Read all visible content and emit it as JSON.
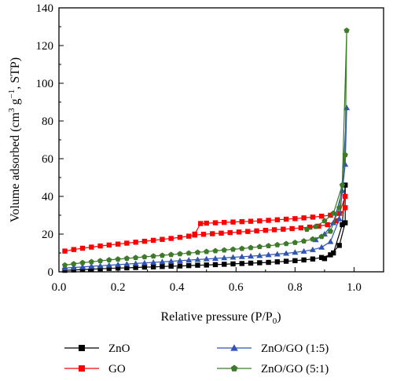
{
  "chart_data": {
    "type": "line",
    "xlabel": "Relative pressure (P/P",
    "xlabel_sub": "0",
    "xlabel_end": ")",
    "ylabel": "Volume adsorbed (cm",
    "ylabel_sup1": "3",
    "ylabel_mid": " g",
    "ylabel_sup2": "−1",
    "ylabel_end": ", STP)",
    "xlim": [
      0.0,
      1.1
    ],
    "ylim": [
      0,
      140
    ],
    "xticks": [
      "0.0",
      "0.2",
      "0.4",
      "0.6",
      "0.8",
      "1.0"
    ],
    "yticks": [
      "0",
      "20",
      "40",
      "60",
      "80",
      "100",
      "120",
      "140"
    ],
    "grid": false,
    "legend_position": "bottom",
    "series": [
      {
        "name": "ZnO",
        "color": "#000000",
        "marker": "square",
        "adsorption": [
          [
            0.02,
            0.8
          ],
          [
            0.05,
            1.0
          ],
          [
            0.08,
            1.2
          ],
          [
            0.11,
            1.4
          ],
          [
            0.14,
            1.6
          ],
          [
            0.17,
            1.8
          ],
          [
            0.2,
            2.0
          ],
          [
            0.23,
            2.1
          ],
          [
            0.26,
            2.3
          ],
          [
            0.29,
            2.5
          ],
          [
            0.32,
            2.6
          ],
          [
            0.35,
            2.8
          ],
          [
            0.38,
            3.0
          ],
          [
            0.41,
            3.1
          ],
          [
            0.44,
            3.3
          ],
          [
            0.47,
            3.5
          ],
          [
            0.5,
            3.6
          ],
          [
            0.53,
            3.8
          ],
          [
            0.56,
            4.0
          ],
          [
            0.59,
            4.2
          ],
          [
            0.62,
            4.4
          ],
          [
            0.65,
            4.6
          ],
          [
            0.68,
            4.8
          ],
          [
            0.71,
            5.0
          ],
          [
            0.74,
            5.3
          ],
          [
            0.77,
            5.6
          ],
          [
            0.8,
            5.9
          ],
          [
            0.83,
            6.3
          ],
          [
            0.86,
            6.8
          ],
          [
            0.89,
            7.6
          ],
          [
            0.92,
            9.0
          ],
          [
            0.95,
            14
          ],
          [
            0.97,
            26
          ]
        ],
        "desorption": [
          [
            0.97,
            46
          ],
          [
            0.96,
            25
          ],
          [
            0.93,
            10
          ],
          [
            0.9,
            7
          ]
        ]
      },
      {
        "name": "GO",
        "color": "#ff0000",
        "marker": "square",
        "adsorption": [
          [
            0.02,
            11
          ],
          [
            0.05,
            11.8
          ],
          [
            0.08,
            12.5
          ],
          [
            0.11,
            13.1
          ],
          [
            0.14,
            13.7
          ],
          [
            0.17,
            14.2
          ],
          [
            0.2,
            14.7
          ],
          [
            0.23,
            15.2
          ],
          [
            0.26,
            15.7
          ],
          [
            0.29,
            16.2
          ],
          [
            0.32,
            16.7
          ],
          [
            0.35,
            17.2
          ],
          [
            0.38,
            17.7
          ],
          [
            0.41,
            18.3
          ],
          [
            0.44,
            18.9
          ],
          [
            0.46,
            19.5
          ],
          [
            0.49,
            19.9
          ],
          [
            0.52,
            20.2
          ],
          [
            0.55,
            20.5
          ],
          [
            0.58,
            20.8
          ],
          [
            0.61,
            21.1
          ],
          [
            0.64,
            21.4
          ],
          [
            0.67,
            21.7
          ],
          [
            0.7,
            22.0
          ],
          [
            0.73,
            22.3
          ],
          [
            0.76,
            22.6
          ],
          [
            0.79,
            22.9
          ],
          [
            0.82,
            23.3
          ],
          [
            0.85,
            23.7
          ],
          [
            0.88,
            24.2
          ],
          [
            0.91,
            25.0
          ],
          [
            0.94,
            27.0
          ],
          [
            0.97,
            34
          ]
        ],
        "desorption": [
          [
            0.97,
            40
          ],
          [
            0.95,
            31
          ],
          [
            0.92,
            30
          ],
          [
            0.89,
            29.5
          ],
          [
            0.86,
            29.0
          ],
          [
            0.83,
            28.6
          ],
          [
            0.8,
            28.2
          ],
          [
            0.77,
            27.9
          ],
          [
            0.74,
            27.6
          ],
          [
            0.71,
            27.3
          ],
          [
            0.68,
            27.0
          ],
          [
            0.65,
            26.8
          ],
          [
            0.62,
            26.6
          ],
          [
            0.59,
            26.4
          ],
          [
            0.56,
            26.2
          ],
          [
            0.53,
            26.0
          ],
          [
            0.5,
            25.8
          ],
          [
            0.48,
            25.6
          ],
          [
            0.46,
            20
          ]
        ]
      },
      {
        "name": "ZnO/GO (1:5)",
        "color": "#2f55b0",
        "marker": "triangle",
        "adsorption": [
          [
            0.02,
            2.0
          ],
          [
            0.05,
            2.3
          ],
          [
            0.08,
            2.6
          ],
          [
            0.11,
            2.9
          ],
          [
            0.14,
            3.2
          ],
          [
            0.17,
            3.5
          ],
          [
            0.2,
            3.8
          ],
          [
            0.23,
            4.1
          ],
          [
            0.26,
            4.4
          ],
          [
            0.29,
            4.7
          ],
          [
            0.32,
            5.0
          ],
          [
            0.35,
            5.3
          ],
          [
            0.38,
            5.6
          ],
          [
            0.41,
            5.9
          ],
          [
            0.44,
            6.2
          ],
          [
            0.47,
            6.5
          ],
          [
            0.5,
            6.8
          ],
          [
            0.53,
            7.1
          ],
          [
            0.56,
            7.4
          ],
          [
            0.59,
            7.7
          ],
          [
            0.62,
            8.0
          ],
          [
            0.65,
            8.3
          ],
          [
            0.68,
            8.6
          ],
          [
            0.71,
            9.0
          ],
          [
            0.74,
            9.4
          ],
          [
            0.77,
            9.8
          ],
          [
            0.8,
            10.3
          ],
          [
            0.83,
            10.9
          ],
          [
            0.86,
            11.7
          ],
          [
            0.89,
            13.0
          ],
          [
            0.92,
            16.0
          ],
          [
            0.95,
            28
          ],
          [
            0.97,
            57
          ]
        ],
        "desorption": [
          [
            0.975,
            87
          ],
          [
            0.96,
            43
          ],
          [
            0.93,
            26
          ],
          [
            0.9,
            20
          ],
          [
            0.87,
            17
          ]
        ]
      },
      {
        "name": "ZnO/GO (5:1)",
        "color": "#3d7a2a",
        "marker": "pentagon",
        "adsorption": [
          [
            0.02,
            3.5
          ],
          [
            0.05,
            4.2
          ],
          [
            0.08,
            4.8
          ],
          [
            0.11,
            5.3
          ],
          [
            0.14,
            5.8
          ],
          [
            0.17,
            6.3
          ],
          [
            0.2,
            6.7
          ],
          [
            0.23,
            7.1
          ],
          [
            0.26,
            7.5
          ],
          [
            0.29,
            7.9
          ],
          [
            0.32,
            8.3
          ],
          [
            0.35,
            8.7
          ],
          [
            0.38,
            9.1
          ],
          [
            0.41,
            9.5
          ],
          [
            0.44,
            9.9
          ],
          [
            0.47,
            10.3
          ],
          [
            0.5,
            10.7
          ],
          [
            0.53,
            11.1
          ],
          [
            0.56,
            11.5
          ],
          [
            0.59,
            11.9
          ],
          [
            0.62,
            12.3
          ],
          [
            0.65,
            12.8
          ],
          [
            0.68,
            13.3
          ],
          [
            0.71,
            13.8
          ],
          [
            0.74,
            14.3
          ],
          [
            0.77,
            14.9
          ],
          [
            0.8,
            15.5
          ],
          [
            0.83,
            16.3
          ],
          [
            0.86,
            17.3
          ],
          [
            0.89,
            18.7
          ],
          [
            0.92,
            21.5
          ],
          [
            0.95,
            34
          ],
          [
            0.97,
            62
          ]
        ],
        "desorption": [
          [
            0.975,
            128
          ],
          [
            0.96,
            46
          ],
          [
            0.93,
            31
          ],
          [
            0.9,
            27
          ],
          [
            0.87,
            24
          ],
          [
            0.84,
            22.5
          ]
        ]
      }
    ]
  }
}
